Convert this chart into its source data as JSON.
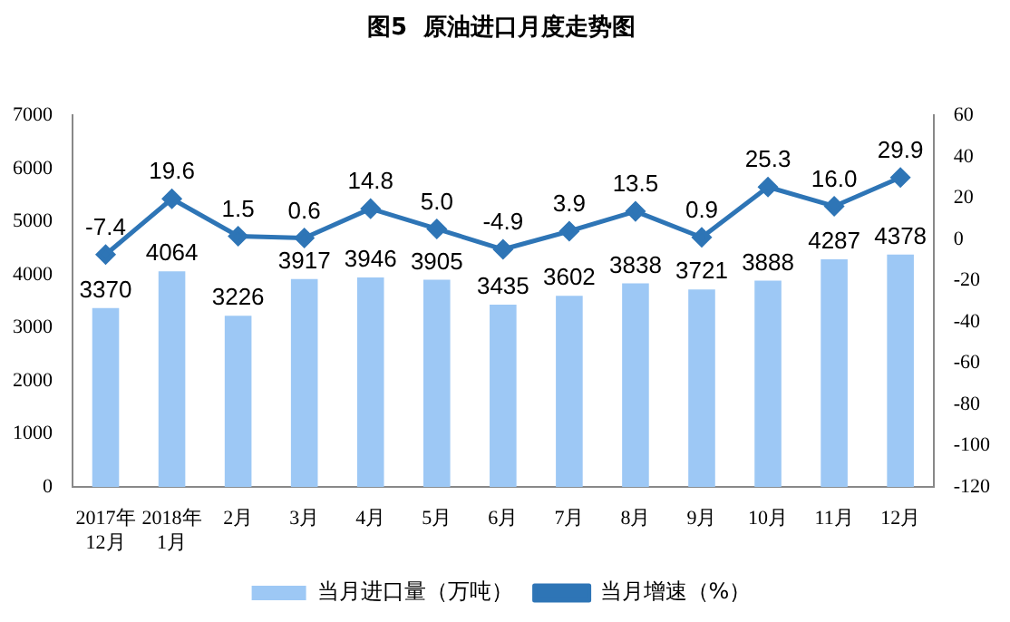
{
  "chart_data": {
    "type": "bar",
    "title": "图5  原油进口月度走势图",
    "categories": [
      "2017年\n12月",
      "2018年\n1月",
      "2月",
      "3月",
      "4月",
      "5月",
      "6月",
      "7月",
      "8月",
      "9月",
      "10月",
      "11月",
      "12月"
    ],
    "series": [
      {
        "name": "当月进口量（万吨）",
        "color": "#9dc8f5",
        "values": [
          3370,
          4064,
          3226,
          3917,
          3946,
          3905,
          3435,
          3602,
          3838,
          3721,
          3888,
          4287,
          4378
        ],
        "value_labels": [
          "3370",
          "4064",
          "3226",
          "3917",
          "3946",
          "3905",
          "3435",
          "3602",
          "3838",
          "3721",
          "3888",
          "4287",
          "4378"
        ]
      },
      {
        "name": "当月增速（%）",
        "type": "line",
        "axis": "y2",
        "color": "#2e75b6",
        "marker": "diamond",
        "values": [
          -7.4,
          19.6,
          1.5,
          0.6,
          14.8,
          5.0,
          -4.9,
          3.9,
          13.5,
          0.9,
          25.3,
          16.0,
          29.9
        ],
        "value_labels": [
          "-7.4",
          "19.6",
          "1.5",
          "0.6",
          "14.8",
          "5.0",
          "-4.9",
          "3.9",
          "13.5",
          "0.9",
          "25.3",
          "16.0",
          "29.9"
        ]
      }
    ],
    "ylim": [
      0,
      7000
    ],
    "yticks": [
      0,
      1000,
      2000,
      3000,
      4000,
      5000,
      6000,
      7000
    ],
    "y2lim": [
      -120,
      60
    ],
    "y2ticks": [
      -120,
      -100,
      -80,
      -60,
      -40,
      -20,
      0,
      20,
      40,
      60
    ],
    "grid": false,
    "legend": "bottom"
  }
}
